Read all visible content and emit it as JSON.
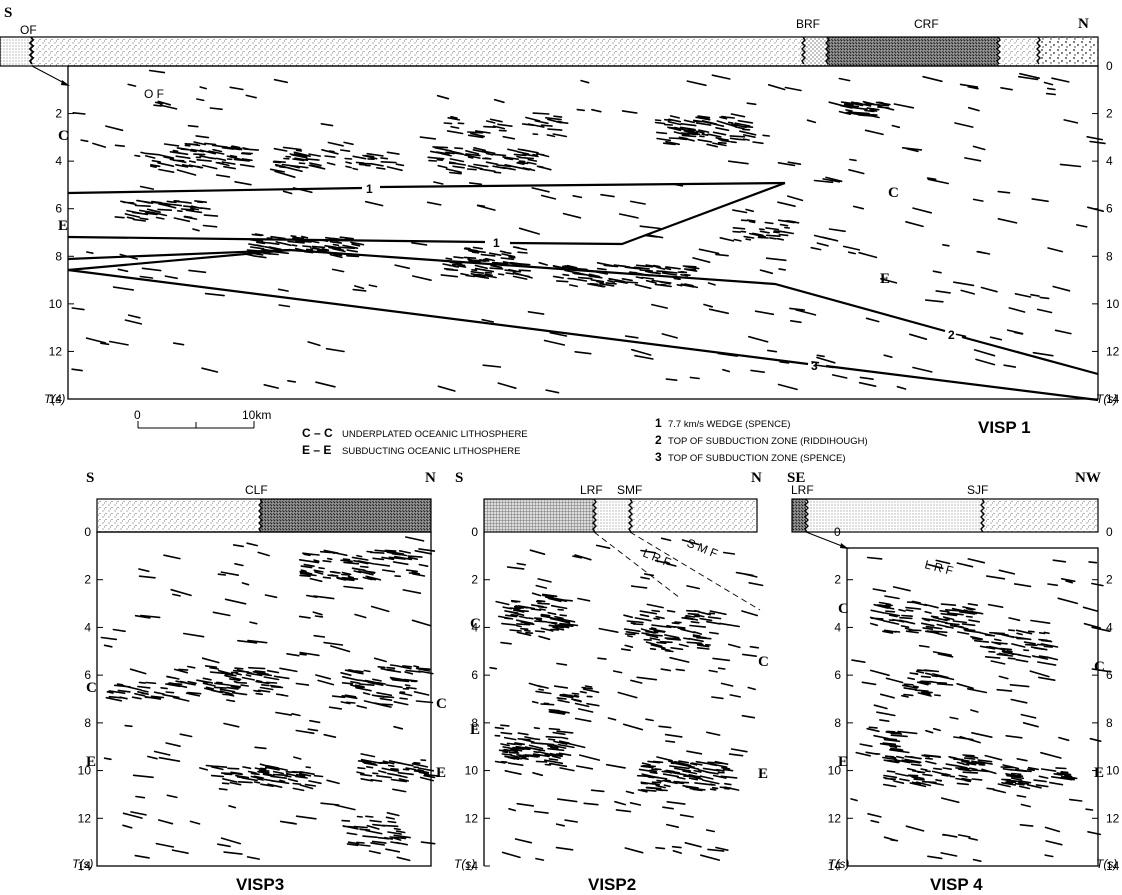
{
  "visp1": {
    "title": "VISP 1",
    "dir_left": "S",
    "dir_right": "N",
    "faults_bar": [
      "OF",
      "BRF",
      "CRF"
    ],
    "oblique_fault": "O F",
    "left_ticks": [
      "2",
      "4",
      "6",
      "8",
      "10",
      "12",
      "14"
    ],
    "right_ticks": [
      "0",
      "2",
      "4",
      "6",
      "8",
      "10",
      "12",
      "14"
    ],
    "time_label": "T(s)",
    "zone_labels_left": [
      "C",
      "E"
    ],
    "zone_labels_inside": [
      "C",
      "E"
    ],
    "line_labels": [
      "1",
      "1",
      "2",
      "3"
    ]
  },
  "scale": {
    "zero": "0",
    "ten": "10km"
  },
  "legend": {
    "c_key": "C – C",
    "c_text": "UNDERPLATED OCEANIC LITHOSPHERE",
    "e_key": "E – E",
    "e_text": "SUBDUCTING OCEANIC LITHOSPHERE",
    "items": [
      {
        "num": "1",
        "text": "7.7 km/s WEDGE (SPENCE)"
      },
      {
        "num": "2",
        "text": "TOP OF SUBDUCTION ZONE (RIDDIHOUGH)"
      },
      {
        "num": "3",
        "text": "TOP OF SUBDUCTION ZONE (SPENCE)"
      }
    ]
  },
  "visp3": {
    "title": "VISP3",
    "dir_left": "S",
    "dir_right": "N",
    "fault": "CLF",
    "ticks": [
      "0",
      "2",
      "4",
      "6",
      "8",
      "10",
      "12",
      "14"
    ],
    "time_label": "T(s)",
    "zone_left": [
      "C",
      "E"
    ],
    "zone_right": [
      "C",
      "E"
    ]
  },
  "visp2": {
    "title": "VISP2",
    "dir_left": "S",
    "dir_right": "N",
    "faults": [
      "LRF",
      "SMF"
    ],
    "oblique_lrf": "L R F",
    "oblique_smf": "S M F",
    "ticks": [
      "0",
      "2",
      "4",
      "6",
      "8",
      "10",
      "12",
      "14"
    ],
    "time_label": "T(s)",
    "zone_left": [
      "C",
      "E"
    ],
    "zone_right": [
      "C",
      "E"
    ]
  },
  "visp4": {
    "title": "VISP 4",
    "dir_left": "SE",
    "dir_right": "NW",
    "faults": [
      "LRF",
      "SJF"
    ],
    "oblique_lrf": "L R F",
    "zero": "0",
    "left_ticks": [
      "2",
      "4",
      "6",
      "8",
      "10",
      "12",
      "14"
    ],
    "right_ticks": [
      "0",
      "2",
      "4",
      "6",
      "8",
      "10",
      "12",
      "14"
    ],
    "time_label": "T(s)",
    "zone_left": [
      "C",
      "E"
    ],
    "zone_right": [
      "C",
      "E"
    ]
  }
}
